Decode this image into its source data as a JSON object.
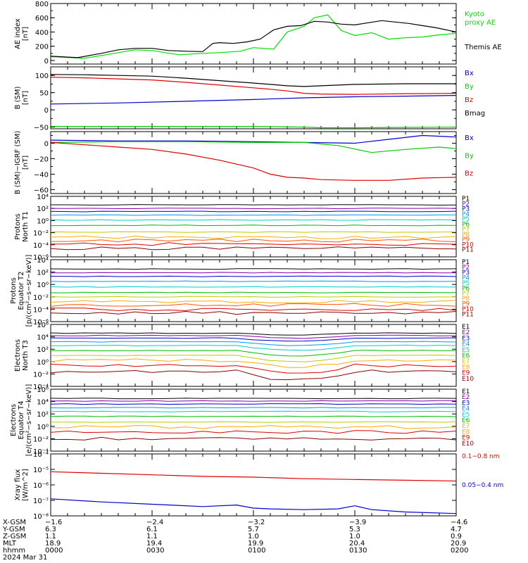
{
  "chart_data": [
    {
      "type": "line",
      "panel": "ae",
      "ylabel": [
        "AE index",
        "[nT]"
      ],
      "ylim": [
        -50,
        800
      ],
      "yticks": [
        {
          "v": 0,
          "t": "0"
        },
        {
          "v": 200,
          "t": "200"
        },
        {
          "v": 400,
          "t": "400"
        },
        {
          "v": 600,
          "t": "600"
        },
        {
          "v": 800,
          "t": "800"
        }
      ],
      "legend": [
        {
          "text": "Kyoto",
          "color": "#00dd00"
        },
        {
          "text": "proxy AE",
          "color": "#00dd00"
        },
        {
          "text": "Themis AE",
          "color": "#000000"
        }
      ],
      "series": [
        {
          "name": "Kyoto proxy AE",
          "color": "#00dd00",
          "x": [
            0,
            10,
            20,
            25,
            30,
            38,
            45,
            50,
            56,
            60,
            66,
            70,
            75,
            78,
            82,
            86,
            90,
            95,
            100,
            105,
            110,
            115,
            120
          ],
          "y": [
            55,
            30,
            110,
            150,
            140,
            80,
            100,
            110,
            130,
            180,
            160,
            400,
            480,
            600,
            640,
            420,
            350,
            390,
            300,
            320,
            330,
            360,
            380
          ]
        },
        {
          "name": "Themis AE",
          "color": "#000000",
          "x": [
            0,
            8,
            15,
            20,
            25,
            30,
            35,
            40,
            45,
            48,
            50,
            54,
            58,
            62,
            66,
            70,
            74,
            78,
            82,
            86,
            90,
            94,
            98,
            102,
            106,
            110,
            114,
            118,
            120
          ],
          "y": [
            60,
            40,
            100,
            150,
            170,
            170,
            140,
            130,
            125,
            240,
            250,
            240,
            260,
            300,
            430,
            480,
            490,
            550,
            540,
            510,
            500,
            530,
            560,
            540,
            520,
            490,
            460,
            420,
            400
          ]
        }
      ]
    },
    {
      "type": "line",
      "panel": "b",
      "ylabel": [
        "B (SM)",
        "[nT]"
      ],
      "ylim": [
        -55,
        125
      ],
      "yticks": [
        {
          "v": -50,
          "t": "−50"
        },
        {
          "v": 0,
          "t": "0"
        },
        {
          "v": 50,
          "t": "50"
        },
        {
          "v": 100,
          "t": "100"
        }
      ],
      "legend": [
        {
          "text": "Bx",
          "color": "#0000cc"
        },
        {
          "text": "By",
          "color": "#00cc00"
        },
        {
          "text": "Bz",
          "color": "#dd0000"
        },
        {
          "text": "Bmag",
          "color": "#000000"
        }
      ],
      "series": [
        {
          "name": "Bx",
          "color": "#0000cc",
          "x": [
            0,
            20,
            40,
            60,
            75,
            90,
            105,
            120
          ],
          "y": [
            17,
            20,
            25,
            30,
            35,
            38,
            40,
            42
          ]
        },
        {
          "name": "By",
          "color": "#00cc00",
          "x": [
            0,
            20,
            40,
            60,
            75,
            80,
            90,
            105,
            120
          ],
          "y": [
            -48,
            -48,
            -48,
            -48,
            -50,
            -52,
            -52,
            -51,
            -50
          ]
        },
        {
          "name": "Bz",
          "color": "#dd0000",
          "x": [
            0,
            10,
            20,
            30,
            40,
            50,
            60,
            65,
            70,
            75,
            80,
            90,
            105,
            120
          ],
          "y": [
            95,
            93,
            90,
            87,
            80,
            72,
            64,
            60,
            55,
            48,
            46,
            45,
            47,
            48
          ]
        },
        {
          "name": "Bmag",
          "color": "#000000",
          "x": [
            0,
            10,
            20,
            30,
            40,
            50,
            60,
            65,
            70,
            75,
            80,
            90,
            105,
            120
          ],
          "y": [
            103,
            102,
            100,
            98,
            92,
            85,
            78,
            74,
            70,
            68,
            70,
            74,
            76,
            76
          ]
        }
      ]
    },
    {
      "type": "line",
      "panel": "dbigrf",
      "ylabel": [
        "B (SM)−IGRF (SM)",
        "[nT]"
      ],
      "ylim": [
        -65,
        15
      ],
      "yticks": [
        {
          "v": -60,
          "t": "−60"
        },
        {
          "v": -40,
          "t": "−40"
        },
        {
          "v": -20,
          "t": "−20"
        },
        {
          "v": 0,
          "t": "0"
        }
      ],
      "legend": [
        {
          "text": "Bx",
          "color": "#0000cc"
        },
        {
          "text": "By",
          "color": "#00cc00"
        },
        {
          "text": "Bz",
          "color": "#dd0000"
        }
      ],
      "series": [
        {
          "name": "Bx",
          "color": "#0000cc",
          "x": [
            0,
            20,
            40,
            60,
            75,
            90,
            100,
            110,
            120
          ],
          "y": [
            4,
            3,
            3,
            2,
            1,
            0,
            5,
            10,
            8
          ]
        },
        {
          "name": "By",
          "color": "#00cc00",
          "x": [
            0,
            20,
            40,
            60,
            75,
            85,
            95,
            105,
            115,
            120
          ],
          "y": [
            1,
            2,
            2,
            1,
            1,
            -3,
            -12,
            -8,
            -5,
            -7
          ]
        },
        {
          "name": "Bz",
          "color": "#dd0000",
          "x": [
            0,
            10,
            20,
            30,
            40,
            50,
            60,
            65,
            70,
            75,
            80,
            90,
            100,
            110,
            120
          ],
          "y": [
            1,
            -2,
            -5,
            -8,
            -14,
            -22,
            -32,
            -40,
            -44,
            -45,
            -47,
            -48,
            -48,
            -45,
            -44
          ]
        }
      ]
    },
    {
      "type": "line",
      "panel": "protons_north",
      "ylabel": [
        "Protons",
        "North T1"
      ],
      "log": true,
      "ylim": [
        -6,
        4
      ],
      "yticks": [
        {
          "v": 4,
          "t": "10⁴"
        },
        {
          "v": 2,
          "t": "10²"
        },
        {
          "v": 0,
          "t": "10⁰"
        },
        {
          "v": -2,
          "t": "10⁻²"
        },
        {
          "v": -4,
          "t": "10⁻⁴"
        },
        {
          "v": -6,
          "t": "10⁻⁶"
        }
      ],
      "levels": [
        2.6,
        2.0,
        1.5,
        0.9,
        0.1,
        -0.8,
        -1.9,
        -2.8,
        -3.3,
        -3.9,
        -4.6
      ],
      "legend": [
        {
          "text": "P1",
          "color": "#000000"
        },
        {
          "text": "P2",
          "color": "#8800aa"
        },
        {
          "text": "P3",
          "color": "#0000cc"
        },
        {
          "text": "P4",
          "color": "#0099ee"
        },
        {
          "text": "P5",
          "color": "#00cccc"
        },
        {
          "text": "P6",
          "color": "#00bb00"
        },
        {
          "text": "P7",
          "color": "#bbcc00"
        },
        {
          "text": "P8",
          "color": "#ffaa00"
        },
        {
          "text": "P9",
          "color": "#ff5500"
        },
        {
          "text": "P10",
          "color": "#dd0000"
        },
        {
          "text": "P11",
          "color": "#880000"
        }
      ]
    },
    {
      "type": "line",
      "panel": "protons_equator",
      "ylabel": [
        "Protons",
        "Equator T2",
        "[p/(cm²−s−sr−keV)]"
      ],
      "log": true,
      "ylim": [
        -6,
        4
      ],
      "yticks": [
        {
          "v": 4,
          "t": "10⁴"
        },
        {
          "v": 2,
          "t": "10²"
        },
        {
          "v": 0,
          "t": "10⁰"
        },
        {
          "v": -2,
          "t": "10⁻²"
        },
        {
          "v": -4,
          "t": "10⁻⁴"
        },
        {
          "v": -6,
          "t": "10⁻⁶"
        }
      ],
      "levels": [
        2.5,
        1.9,
        1.3,
        0.5,
        -0.4,
        -1.3,
        -2.0,
        -2.8,
        -3.3,
        -4.0,
        -4.6
      ],
      "legend": [
        {
          "text": "P1",
          "color": "#000000"
        },
        {
          "text": "P2",
          "color": "#8800aa"
        },
        {
          "text": "P3",
          "color": "#0000cc"
        },
        {
          "text": "P4",
          "color": "#0099ee"
        },
        {
          "text": "P5",
          "color": "#00cccc"
        },
        {
          "text": "P6",
          "color": "#00bb00"
        },
        {
          "text": "P7",
          "color": "#bbcc00"
        },
        {
          "text": "P8",
          "color": "#ffaa00"
        },
        {
          "text": "P9",
          "color": "#ff5500"
        },
        {
          "text": "P10",
          "color": "#dd0000"
        },
        {
          "text": "P11",
          "color": "#880000"
        }
      ]
    },
    {
      "type": "line",
      "panel": "electrons_north",
      "ylabel": [
        "Electrons",
        "North T3"
      ],
      "log": true,
      "ylim": [
        -4,
        6
      ],
      "yticks": [
        {
          "v": 6,
          "t": "10⁶"
        },
        {
          "v": 4,
          "t": "10⁴"
        },
        {
          "v": 2,
          "t": "10²"
        },
        {
          "v": 0,
          "t": "10⁰"
        },
        {
          "v": -2,
          "t": "10⁻²"
        },
        {
          "v": -4,
          "t": "10⁻⁴"
        }
      ],
      "levels": [
        4.6,
        4.2,
        3.8,
        3.2,
        2.6,
        1.8,
        1.0,
        0.2,
        -0.6,
        -1.6
      ],
      "legend": [
        {
          "text": "E1",
          "color": "#000000"
        },
        {
          "text": "E2",
          "color": "#8800aa"
        },
        {
          "text": "E3",
          "color": "#0000cc"
        },
        {
          "text": "E4",
          "color": "#0099ee"
        },
        {
          "text": "E5",
          "color": "#00cccc"
        },
        {
          "text": "E6",
          "color": "#00bb00"
        },
        {
          "text": "E7",
          "color": "#bbcc00"
        },
        {
          "text": "E8",
          "color": "#ffaa00"
        },
        {
          "text": "E9",
          "color": "#dd0000"
        },
        {
          "text": "E10",
          "color": "#880000"
        }
      ]
    },
    {
      "type": "line",
      "panel": "electrons_equator",
      "ylabel": [
        "Electrons",
        "Equator T4",
        "[e/(cm²−s−sr−keV)]"
      ],
      "log": true,
      "ylim": [
        -4,
        6
      ],
      "yticks": [
        {
          "v": 6,
          "t": "10⁶"
        },
        {
          "v": 4,
          "t": "10⁴"
        },
        {
          "v": 2,
          "t": "10²"
        },
        {
          "v": 0,
          "t": "10⁰"
        },
        {
          "v": -2,
          "t": "10⁻²"
        },
        {
          "v": -4,
          "t": "10⁻⁴"
        }
      ],
      "levels": [
        4.5,
        4.1,
        3.6,
        3.0,
        2.4,
        1.6,
        0.7,
        -0.1,
        -0.9,
        -2.0
      ],
      "legend": [
        {
          "text": "E1",
          "color": "#000000"
        },
        {
          "text": "E2",
          "color": "#8800aa"
        },
        {
          "text": "E3",
          "color": "#0000cc"
        },
        {
          "text": "E4",
          "color": "#0099ee"
        },
        {
          "text": "E5",
          "color": "#00cccc"
        },
        {
          "text": "E6",
          "color": "#00bb00"
        },
        {
          "text": "E7",
          "color": "#bbcc00"
        },
        {
          "text": "E8",
          "color": "#ffaa00"
        },
        {
          "text": "E9",
          "color": "#dd0000"
        },
        {
          "text": "E10",
          "color": "#880000"
        }
      ]
    },
    {
      "type": "line",
      "panel": "xray",
      "ylabel": [
        "Xray flux",
        "[W/m^2]"
      ],
      "log": true,
      "ylim": [
        -8,
        -4
      ],
      "yticks": [
        {
          "v": -4,
          "t": "10⁻⁴"
        },
        {
          "v": -5,
          "t": "10⁻⁵"
        },
        {
          "v": -6,
          "t": "10⁻⁶"
        },
        {
          "v": -7,
          "t": "10⁻⁷"
        },
        {
          "v": -8,
          "t": "10⁻⁸"
        }
      ],
      "legend": [
        {
          "text": "0.1−0.8 nm",
          "color": "#dd0000"
        },
        {
          "text": "0.05−0.4 nm",
          "color": "#0000cc"
        }
      ],
      "series": [
        {
          "name": "0.1−0.8 nm",
          "color": "#dd0000",
          "x": [
            0,
            15,
            30,
            45,
            60,
            75,
            90,
            105,
            120
          ],
          "y": [
            -5.15,
            -5.25,
            -5.35,
            -5.45,
            -5.5,
            -5.6,
            -5.65,
            -5.7,
            -5.75
          ]
        },
        {
          "name": "0.05−0.4 nm",
          "color": "#0000cc",
          "x": [
            0,
            15,
            30,
            45,
            55,
            60,
            65,
            75,
            85,
            90,
            95,
            105,
            120
          ],
          "y": [
            -6.9,
            -7.1,
            -7.25,
            -7.4,
            -7.3,
            -7.5,
            -7.55,
            -7.6,
            -7.55,
            -7.35,
            -7.6,
            -7.75,
            -7.85
          ]
        }
      ]
    }
  ],
  "axis_rows": [
    {
      "label": "X-GSM",
      "values": [
        "−1.6",
        "−2.4",
        "−3.2",
        "−3.9",
        "−4.6"
      ]
    },
    {
      "label": "Y-GSM",
      "values": [
        "6.3",
        "6.1",
        "5.7",
        "5.3",
        "4.7"
      ]
    },
    {
      "label": "Z-GSM",
      "values": [
        "1.1",
        "1.1",
        "1.0",
        "1.0",
        "0.9"
      ]
    },
    {
      "label": "MLT",
      "values": [
        "18.9",
        "19.4",
        "19.9",
        "20.4",
        "20.9"
      ]
    },
    {
      "label": "hhmm",
      "values": [
        "0000",
        "0030",
        "0100",
        "0130",
        "0200"
      ]
    }
  ],
  "date_label": "2024 Mar 31",
  "x_minutes": [
    0,
    30,
    60,
    90,
    120
  ]
}
